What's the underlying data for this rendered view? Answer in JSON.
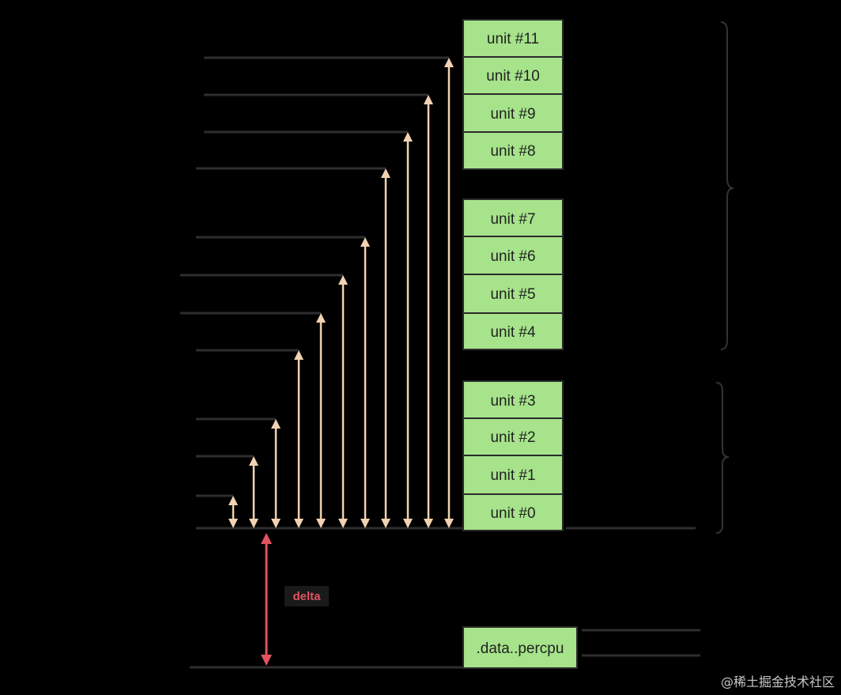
{
  "units_top_group": [
    "unit #11",
    "unit #10",
    "unit #9",
    "unit #8"
  ],
  "units_middle_group": [
    "unit #7",
    "unit #6",
    "unit #5",
    "unit #4"
  ],
  "units_bottom_group": [
    "unit #3",
    "unit #2",
    "unit #1",
    "unit #0"
  ],
  "percpu_section_label": ".data..percpu",
  "delta_label": "delta",
  "watermark": "@稀土掘金技术社区",
  "colors": {
    "background": "#000000",
    "unit_fill": "#a6e38a",
    "arrow": "#f2d2b2",
    "delta": "#e0535f"
  }
}
